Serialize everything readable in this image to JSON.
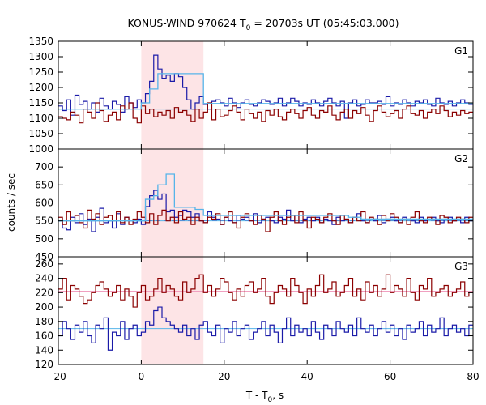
{
  "title_main": "KONUS-WIND 970624 T",
  "title_sub": "0",
  "title_tail": " = 20703s UT (05:45:03.000)",
  "ylabel": "counts / sec",
  "xlabel_main": "T - T",
  "xlabel_sub": "0",
  "xlabel_tail": ", s",
  "colors": {
    "blue": "#1a1aa8",
    "red": "#8b0000",
    "light_blue": "#56b4e9",
    "pink_line": "#f0a0c0",
    "shade": "#fde4e6"
  },
  "chart_data": {
    "type": "line",
    "step": "post",
    "xlim": [
      -20,
      80
    ],
    "xticks": [
      -20,
      0,
      20,
      40,
      60,
      80
    ],
    "shaded_interval": [
      0,
      15
    ],
    "bin_width": 1.0,
    "x_start": -20,
    "panels": [
      {
        "label": "G1",
        "ylim": [
          1000,
          1350
        ],
        "yticks": [
          1000,
          1050,
          1100,
          1150,
          1200,
          1250,
          1300,
          1350
        ],
        "reference_lines": [
          {
            "y": 1130,
            "color": "light_blue"
          },
          {
            "y": 1146,
            "color": "blue",
            "dashed": true
          }
        ],
        "light_blue_steps": {
          "x": [
            -20,
            -17,
            0,
            2,
            4,
            9,
            11,
            13,
            15,
            80
          ],
          "y": [
            1130,
            1130,
            1150,
            1195,
            1245,
            1245,
            1245,
            1245,
            1148,
            1148
          ]
        },
        "series": [
          {
            "color": "blue",
            "values": [
              1140,
              1125,
              1160,
              1110,
              1175,
              1145,
              1155,
              1130,
              1150,
              1120,
              1165,
              1140,
              1130,
              1155,
              1145,
              1120,
              1170,
              1150,
              1135,
              1160,
              1150,
              1180,
              1220,
              1305,
              1260,
              1230,
              1240,
              1220,
              1245,
              1235,
              1200,
              1160,
              1130,
              1150,
              1170,
              1145,
              1130,
              1155,
              1160,
              1150,
              1140,
              1165,
              1150,
              1135,
              1150,
              1160,
              1145,
              1140,
              1150,
              1160,
              1155,
              1145,
              1150,
              1165,
              1140,
              1150,
              1165,
              1155,
              1140,
              1150,
              1145,
              1160,
              1150,
              1140,
              1155,
              1165,
              1150,
              1140,
              1155,
              1100,
              1150,
              1160,
              1140,
              1145,
              1160,
              1150,
              1150,
              1155,
              1145,
              1170,
              1140,
              1150,
              1145,
              1160,
              1150,
              1140,
              1155,
              1150,
              1160,
              1145,
              1140,
              1165,
              1150,
              1145,
              1155,
              1140,
              1150,
              1160,
              1150,
              1145
            ]
          },
          {
            "color": "red",
            "values": [
              1105,
              1100,
              1095,
              1120,
              1110,
              1085,
              1130,
              1120,
              1100,
              1150,
              1125,
              1090,
              1110,
              1120,
              1095,
              1140,
              1130,
              1150,
              1100,
              1085,
              1140,
              1115,
              1130,
              1105,
              1120,
              1110,
              1125,
              1100,
              1135,
              1120,
              1125,
              1110,
              1090,
              1130,
              1100,
              1120,
              1150,
              1095,
              1130,
              1105,
              1110,
              1125,
              1140,
              1120,
              1095,
              1130,
              1115,
              1100,
              1120,
              1090,
              1125,
              1110,
              1130,
              1105,
              1095,
              1120,
              1130,
              1115,
              1100,
              1125,
              1135,
              1110,
              1100,
              1125,
              1120,
              1140,
              1110,
              1095,
              1120,
              1130,
              1100,
              1125,
              1115,
              1135,
              1110,
              1090,
              1125,
              1140,
              1120,
              1105,
              1115,
              1125,
              1100,
              1130,
              1140,
              1115,
              1110,
              1125,
              1100,
              1120,
              1130,
              1115,
              1140,
              1125,
              1105,
              1120,
              1110,
              1125,
              1115,
              1120
            ]
          }
        ]
      },
      {
        "label": "G2",
        "ylim": [
          450,
          750
        ],
        "yticks": [
          450,
          500,
          550,
          600,
          650,
          700
        ],
        "reference_lines": [
          {
            "y": 550,
            "color": "light_blue"
          },
          {
            "y": 552,
            "color": "blue",
            "dashed": true
          }
        ],
        "light_blue_steps": {
          "x": [
            -20,
            0,
            1,
            3,
            4,
            6,
            8,
            13,
            15,
            50,
            53,
            80
          ],
          "y": [
            550,
            550,
            610,
            620,
            650,
            680,
            588,
            582,
            565,
            560,
            555,
            553
          ]
        },
        "series": [
          {
            "color": "blue",
            "values": [
              550,
              530,
              525,
              560,
              545,
              570,
              540,
              555,
              520,
              560,
              585,
              545,
              550,
              530,
              570,
              540,
              560,
              550,
              545,
              555,
              540,
              590,
              620,
              635,
              610,
              625,
              575,
              580,
              560,
              565,
              580,
              575,
              560,
              570,
              550,
              545,
              575,
              560,
              555,
              540,
              560,
              550,
              545,
              565,
              555,
              560,
              550,
              570,
              545,
              555,
              560,
              550,
              545,
              560,
              555,
              580,
              550,
              565,
              545,
              555,
              560,
              550,
              560,
              545,
              555,
              550,
              540,
              560,
              550,
              555,
              545,
              560,
              570,
              550,
              545,
              555,
              550,
              565,
              545,
              555,
              560,
              550,
              545,
              560,
              555,
              550,
              545,
              560,
              550,
              555,
              560,
              550,
              545,
              555,
              560,
              550,
              555,
              545,
              560,
              550
            ]
          },
          {
            "color": "red",
            "values": [
              560,
              540,
              575,
              550,
              565,
              545,
              530,
              580,
              555,
              570,
              540,
              560,
              565,
              550,
              575,
              545,
              560,
              540,
              555,
              575,
              560,
              545,
              570,
              540,
              565,
              580,
              550,
              560,
              545,
              575,
              555,
              560,
              540,
              560,
              550,
              545,
              560,
              555,
              570,
              540,
              560,
              575,
              545,
              530,
              560,
              570,
              550,
              540,
              565,
              555,
              520,
              560,
              575,
              550,
              540,
              560,
              565,
              545,
              575,
              550,
              530,
              560,
              555,
              545,
              560,
              570,
              550,
              540,
              565,
              555,
              545,
              560,
              550,
              575,
              545,
              560,
              555,
              540,
              565,
              550,
              570,
              560,
              545,
              555,
              540,
              560,
              575,
              550,
              545,
              560,
              555,
              540,
              565,
              560,
              545,
              550,
              560,
              555,
              545,
              560
            ]
          }
        ]
      },
      {
        "label": "G3",
        "ylim": [
          120,
          270
        ],
        "yticks": [
          120,
          140,
          160,
          180,
          200,
          220,
          240,
          260
        ],
        "reference_lines": [
          {
            "y": 222,
            "color": "pink_line"
          },
          {
            "y": 170,
            "color": "light_blue"
          }
        ],
        "series": [
          {
            "color": "red",
            "values": [
              225,
              240,
              210,
              230,
              225,
              215,
              205,
              210,
              220,
              230,
              235,
              225,
              215,
              220,
              230,
              210,
              225,
              215,
              200,
              220,
              230,
              210,
              215,
              225,
              240,
              220,
              230,
              225,
              215,
              210,
              235,
              220,
              225,
              240,
              245,
              220,
              230,
              215,
              225,
              240,
              235,
              220,
              210,
              225,
              215,
              230,
              235,
              220,
              225,
              240,
              215,
              205,
              220,
              230,
              225,
              215,
              240,
              230,
              220,
              205,
              225,
              215,
              230,
              245,
              220,
              225,
              235,
              215,
              220,
              230,
              240,
              215,
              225,
              210,
              235,
              220,
              230,
              215,
              225,
              245,
              220,
              230,
              225,
              215,
              240,
              220,
              210,
              230,
              225,
              240,
              215,
              220,
              225,
              230,
              215,
              220,
              225,
              235,
              215,
              220
            ]
          },
          {
            "color": "blue",
            "values": [
              160,
              180,
              170,
              155,
              175,
              165,
              180,
              160,
              150,
              175,
              170,
              185,
              140,
              165,
              160,
              180,
              155,
              170,
              175,
              160,
              165,
              180,
              175,
              195,
              200,
              185,
              180,
              175,
              170,
              165,
              175,
              160,
              170,
              155,
              175,
              180,
              165,
              160,
              175,
              150,
              170,
              165,
              180,
              160,
              170,
              175,
              155,
              165,
              170,
              180,
              160,
              175,
              165,
              150,
              170,
              185,
              160,
              175,
              165,
              170,
              160,
              180,
              165,
              155,
              175,
              170,
              160,
              180,
              170,
              165,
              175,
              160,
              185,
              170,
              165,
              175,
              160,
              170,
              180,
              165,
              175,
              160,
              170,
              155,
              175,
              165,
              170,
              180,
              160,
              175,
              165,
              170,
              185,
              160,
              170,
              175,
              165,
              170,
              160,
              175
            ]
          }
        ]
      }
    ]
  }
}
